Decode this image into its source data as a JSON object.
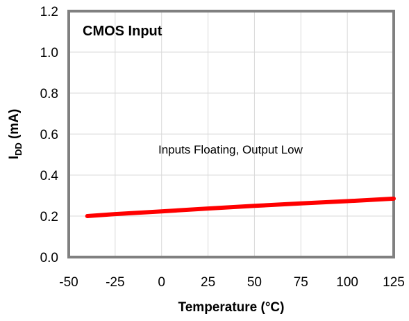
{
  "chart_data": {
    "type": "line",
    "title": "",
    "inset_title": "CMOS Input",
    "annotation": "Inputs Floating, Output Low",
    "xlabel": "Temperature (°C)",
    "ylabel": {
      "prefix": "I",
      "subscript": "DD",
      "suffix": " (mA)"
    },
    "xlim": [
      -50,
      125
    ],
    "ylim": [
      0.0,
      1.2
    ],
    "xticks": [
      -50,
      -25,
      0,
      25,
      50,
      75,
      100,
      125
    ],
    "xtick_labels": [
      "-50",
      "-25",
      "0",
      "25",
      "50",
      "75",
      "100",
      "125"
    ],
    "yticks": [
      0.0,
      0.2,
      0.4,
      0.6,
      0.8,
      1.0,
      1.2
    ],
    "ytick_labels": [
      "0.0",
      "0.2",
      "0.4",
      "0.6",
      "0.8",
      "1.0",
      "1.2"
    ],
    "grid": true,
    "series": [
      {
        "color": "#ff0000",
        "x": [
          -40,
          -25,
          0,
          25,
          50,
          75,
          100,
          125
        ],
        "y": [
          0.2,
          0.21,
          0.223,
          0.237,
          0.25,
          0.262,
          0.273,
          0.285
        ]
      }
    ],
    "colors": {
      "plot_border": "#808080",
      "grid": "#d9d9d9",
      "line": "#ff0000"
    }
  }
}
